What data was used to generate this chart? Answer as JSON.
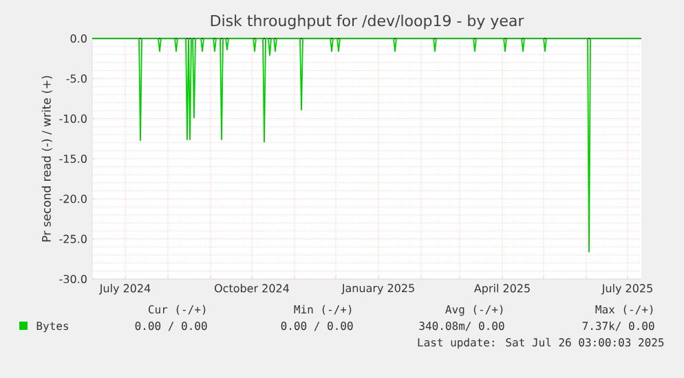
{
  "chart_data": {
    "type": "line",
    "title": "Disk throughput for /dev/loop19 - by year",
    "ylabel": "Pr second read (-) / write (+)",
    "xlim": [
      "2024-06-07",
      "2025-07-11"
    ],
    "ylim": [
      -30,
      0
    ],
    "xticks": [
      {
        "value": "2024-07-01",
        "label": "July 2024"
      },
      {
        "value": "2024-08-01",
        "label": null
      },
      {
        "value": "2024-09-01",
        "label": null
      },
      {
        "value": "2024-10-01",
        "label": "October 2024"
      },
      {
        "value": "2024-11-01",
        "label": null
      },
      {
        "value": "2024-12-01",
        "label": null
      },
      {
        "value": "2025-01-01",
        "label": "January 2025"
      },
      {
        "value": "2025-02-01",
        "label": null
      },
      {
        "value": "2025-03-01",
        "label": null
      },
      {
        "value": "2025-04-01",
        "label": "April 2025"
      },
      {
        "value": "2025-05-01",
        "label": null
      },
      {
        "value": "2025-06-01",
        "label": null
      },
      {
        "value": "2025-07-01",
        "label": "July 2025"
      }
    ],
    "yticks": [
      {
        "value": -30,
        "label": "-30.0"
      },
      {
        "value": -25,
        "label": "-25.0"
      },
      {
        "value": -20,
        "label": "-20.0"
      },
      {
        "value": -15,
        "label": "-15.0"
      },
      {
        "value": -10,
        "label": "-10.0"
      },
      {
        "value": -5,
        "label": "-5.0"
      },
      {
        "value": 0,
        "label": "0.0"
      }
    ],
    "grid": true,
    "legend": "bottom",
    "marker": "none",
    "line_style": "solid",
    "ref_lines": [
      {
        "axis": "y",
        "value": 0,
        "color": "#000000"
      }
    ],
    "series": [
      {
        "name": "Bytes",
        "color": "#00cc00",
        "x": [
          "2024-06-07",
          "2024-07-11",
          "2024-07-12",
          "2024-07-13",
          "2024-07-25",
          "2024-07-26",
          "2024-07-27",
          "2024-08-06",
          "2024-08-07",
          "2024-08-08",
          "2024-08-14",
          "2024-08-15",
          "2024-08-16",
          "2024-08-17",
          "2024-08-18",
          "2024-08-19",
          "2024-08-20",
          "2024-08-21",
          "2024-08-25",
          "2024-08-26",
          "2024-08-27",
          "2024-09-03",
          "2024-09-04",
          "2024-09-05",
          "2024-09-08",
          "2024-09-09",
          "2024-09-10",
          "2024-09-12",
          "2024-09-13",
          "2024-09-14",
          "2024-10-02",
          "2024-10-03",
          "2024-10-04",
          "2024-10-09",
          "2024-10-10",
          "2024-10-11",
          "2024-10-13",
          "2024-10-14",
          "2024-10-15",
          "2024-10-17",
          "2024-10-18",
          "2024-10-19",
          "2024-11-05",
          "2024-11-06",
          "2024-11-07",
          "2024-11-27",
          "2024-11-28",
          "2024-11-29",
          "2024-12-02",
          "2024-12-03",
          "2024-12-04",
          "2025-01-12",
          "2025-01-13",
          "2025-01-14",
          "2025-02-10",
          "2025-02-11",
          "2025-02-12",
          "2025-03-11",
          "2025-03-12",
          "2025-03-13",
          "2025-04-02",
          "2025-04-03",
          "2025-04-04",
          "2025-04-15",
          "2025-04-16",
          "2025-04-17",
          "2025-05-01",
          "2025-05-02",
          "2025-05-03",
          "2025-06-02",
          "2025-06-03",
          "2025-06-04",
          "2025-07-11"
        ],
        "values": [
          0,
          0,
          -12.7,
          0,
          0,
          -1.6,
          0,
          0,
          -1.6,
          0,
          0,
          -12.6,
          0,
          -12.6,
          0,
          0,
          -9.9,
          0,
          0,
          -1.6,
          0,
          0,
          -1.6,
          0,
          0,
          -12.6,
          0,
          0,
          -1.4,
          0,
          0,
          -1.6,
          0,
          0,
          -12.9,
          0,
          0,
          -2.1,
          0,
          0,
          -1.6,
          0,
          0,
          -8.9,
          0,
          0,
          -1.6,
          0,
          0,
          -1.6,
          0,
          0,
          -1.6,
          0,
          0,
          -1.6,
          0,
          0,
          -1.6,
          0,
          0,
          -1.6,
          0,
          0,
          -1.6,
          0,
          0,
          -1.6,
          0,
          0,
          -26.6,
          0,
          0
        ]
      }
    ],
    "annotations": [
      "Cur (-/+)",
      "Min (-/+)",
      "Avg (-/+)",
      "Max (-/+)",
      "0.00 /  0.00",
      "0.00 /  0.00",
      "340.08m/  0.00",
      "7.37k/  0.00",
      "Last update: Sat Jul 26 03:00:03 2025"
    ]
  }
}
